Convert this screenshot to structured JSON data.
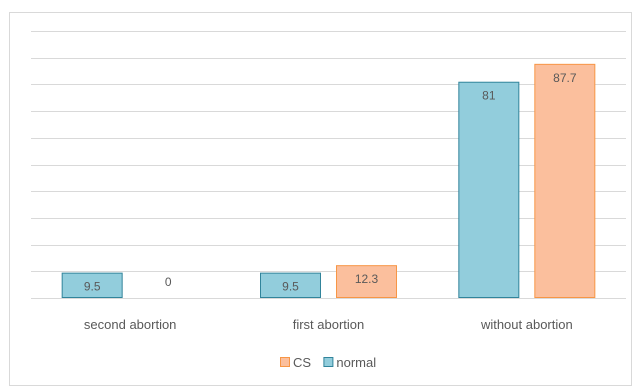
{
  "chart_data": {
    "type": "bar",
    "categories": [
      "second abortion",
      "first abortion",
      "without abortion"
    ],
    "series": [
      {
        "name": "normal",
        "values": [
          9.5,
          9.5,
          81
        ],
        "color": "#92cddc",
        "stroke": "#31849b"
      },
      {
        "name": "CS",
        "values": [
          0,
          12.3,
          87.7
        ],
        "color": "#fbbf9d",
        "stroke": "#f79646"
      }
    ],
    "data_labels": [
      [
        "9.5",
        "9.5",
        "81"
      ],
      [
        "0",
        "12.3",
        "87.7"
      ]
    ],
    "legend": {
      "position": "bottom",
      "entries": [
        "CS",
        "normal"
      ]
    },
    "ylim": [
      0,
      100
    ],
    "grid": true,
    "gridline_count": 11
  }
}
